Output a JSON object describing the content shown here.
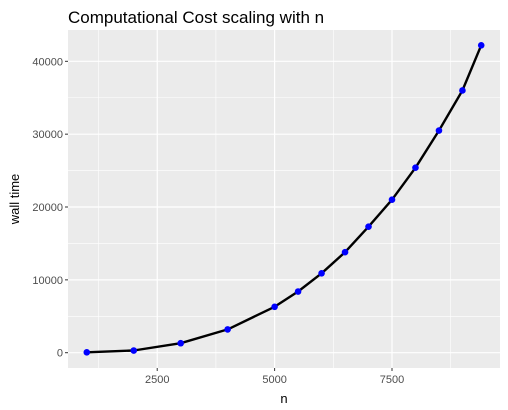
{
  "chart_data": {
    "type": "line",
    "title": "Computational Cost scaling with n",
    "xlabel": "n",
    "ylabel": "wall time",
    "xlim": [
      600,
      9800
    ],
    "ylim": [
      -2100,
      44300
    ],
    "x_ticks": [
      2500,
      5000,
      7500
    ],
    "y_ticks": [
      0,
      10000,
      20000,
      30000,
      40000
    ],
    "x_tick_labels": [
      "2500",
      "5000",
      "7500"
    ],
    "y_tick_labels": [
      "0",
      "10000",
      "20000",
      "30000",
      "40000"
    ],
    "grid": true,
    "line_color": "#000000",
    "point_color": "#0000ff",
    "panel_background": "#ebebeb",
    "series": [
      {
        "x": [
          1000,
          2000,
          3000,
          4000,
          5000,
          5500,
          6000,
          6500,
          7000,
          7500,
          8000,
          8500,
          9000,
          9400
        ],
        "values": [
          50,
          300,
          1300,
          3200,
          6300,
          8400,
          10900,
          13800,
          17300,
          21000,
          25400,
          30500,
          36000,
          42200
        ]
      }
    ]
  }
}
